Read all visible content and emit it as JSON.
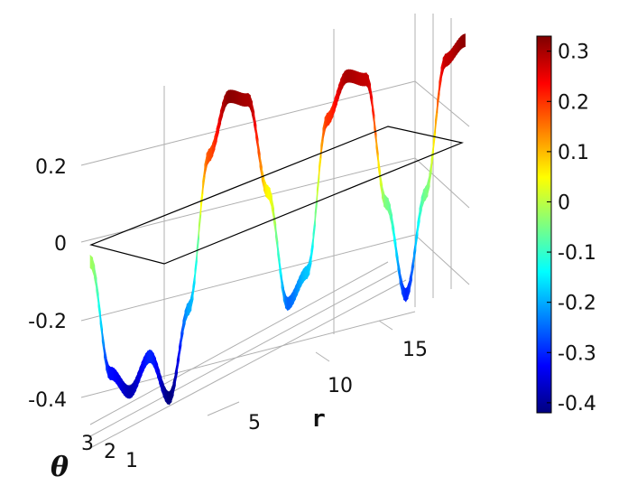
{
  "chart_data": {
    "type": "surface3d",
    "x_axis": {
      "label": "r",
      "ticks": [
        5,
        10,
        15
      ],
      "range": [
        1,
        20
      ]
    },
    "y_axis": {
      "label": "θ",
      "ticks": [
        1,
        2,
        3
      ],
      "range": [
        0,
        3.3
      ]
    },
    "z_axis": {
      "label": "",
      "ticks": [
        0.2,
        0,
        -0.2,
        -0.4
      ],
      "range": [
        -0.45,
        0.35
      ]
    },
    "surface": {
      "r": [
        1,
        2,
        3,
        4,
        5,
        6,
        7,
        8,
        9,
        10,
        11,
        12,
        13,
        14,
        15,
        16,
        17,
        18,
        19,
        20
      ],
      "z_profile_note": "",
      "z": [
        -0.02,
        -0.32,
        -0.38,
        -0.3,
        -0.42,
        -0.2,
        0.18,
        0.32,
        0.3,
        0.05,
        -0.25,
        -0.18,
        0.2,
        0.3,
        0.28,
        -0.05,
        -0.3,
        -0.05,
        0.28,
        0.32
      ]
    },
    "colorbar": {
      "ticks": [
        0.3,
        0.2,
        0.1,
        0,
        -0.1,
        -0.2,
        -0.3,
        -0.4
      ],
      "min": -0.42,
      "max": 0.33,
      "colormap": "jet"
    },
    "grid": true
  }
}
